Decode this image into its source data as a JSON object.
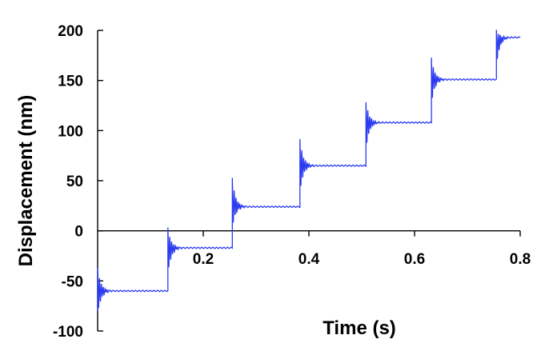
{
  "chart_data": {
    "type": "line",
    "title": "",
    "xlabel": "Time  (s)",
    "ylabel": "Displacement (nm)",
    "xlim": [
      0,
      0.8
    ],
    "ylim": [
      -100,
      200
    ],
    "x_ticks": [
      0.2,
      0.4,
      0.6,
      0.8
    ],
    "x_tick_labels": [
      "0.2",
      "0.4",
      "0.6",
      "0.8"
    ],
    "y_ticks": [
      -100,
      -50,
      0,
      50,
      100,
      150,
      200
    ],
    "y_tick_labels": [
      "-100",
      "-50",
      "0",
      "50",
      "100",
      "150",
      "200"
    ],
    "grid": false,
    "legend": false,
    "series": [
      {
        "name": "",
        "color": "#2b3bf0",
        "description": "staircase step response with decaying ringing after each step",
        "steps": [
          {
            "t": 0.0,
            "level": -60,
            "overshoot_peak": -37,
            "overshoot_trough": -85
          },
          {
            "t": 0.133,
            "level": -17,
            "overshoot_peak": 3,
            "overshoot_trough": -45
          },
          {
            "t": 0.255,
            "level": 24,
            "overshoot_peak": 53,
            "overshoot_trough": 2
          },
          {
            "t": 0.383,
            "level": 65,
            "overshoot_peak": 92,
            "overshoot_trough": 36
          },
          {
            "t": 0.508,
            "level": 108,
            "overshoot_peak": 129,
            "overshoot_trough": 80
          },
          {
            "t": 0.632,
            "level": 151,
            "overshoot_peak": 173,
            "overshoot_trough": 126
          },
          {
            "t": 0.755,
            "level": 193,
            "overshoot_peak": 200,
            "overshoot_trough": 163
          }
        ],
        "x_end": 0.8
      }
    ]
  }
}
